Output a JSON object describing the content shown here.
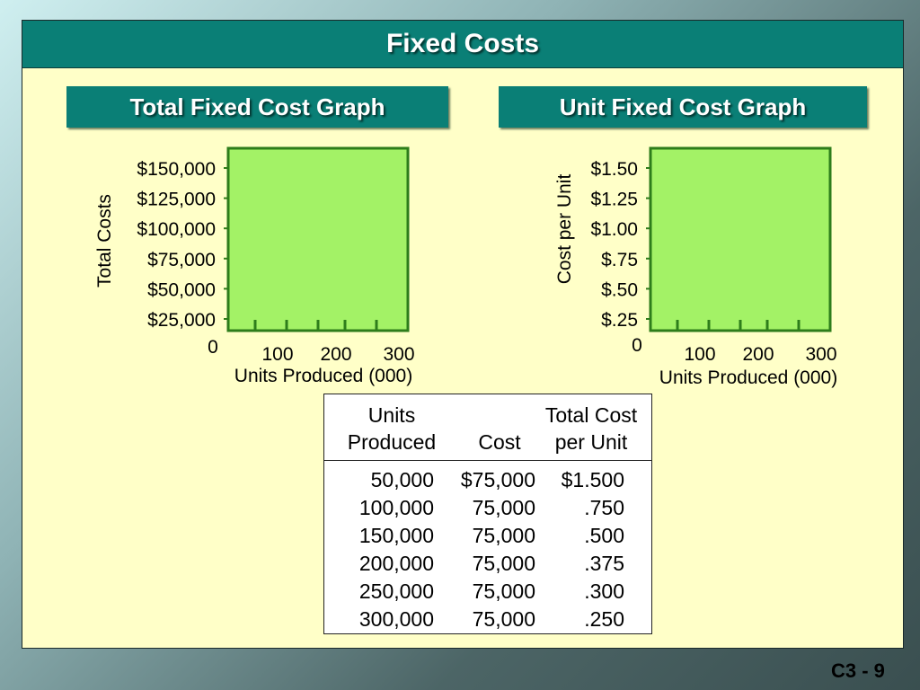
{
  "slide": {
    "title": "Fixed Costs",
    "number": "C3 - 9"
  },
  "chart_data": [
    {
      "type": "bar",
      "title": "Total Fixed Cost Graph",
      "ylabel": "Total Costs",
      "xlabel": "Units Produced (000)",
      "origin_label": "0",
      "y_tick_labels": [
        "$25,000",
        "$50,000",
        "$75,000",
        "$100,000",
        "$125,000",
        "$150,000"
      ],
      "x_tick_labels": [
        "100",
        "200",
        "300"
      ],
      "ylim": [
        0,
        150000
      ],
      "xlim": [
        0,
        300
      ],
      "plot_color": "#a3f266",
      "border_color": "#2e7d1b"
    },
    {
      "type": "bar",
      "title": "Unit Fixed Cost Graph",
      "ylabel": "Cost per Unit",
      "xlabel": "Units Produced (000)",
      "origin_label": "0",
      "y_tick_labels": [
        "$.25",
        "$.50",
        "$.75",
        "$1.00",
        "$1.25",
        "$1.50"
      ],
      "x_tick_labels": [
        "100",
        "200",
        "300"
      ],
      "ylim": [
        0,
        1.5
      ],
      "xlim": [
        0,
        300
      ],
      "plot_color": "#a3f266",
      "border_color": "#2e7d1b"
    }
  ],
  "table": {
    "headers": {
      "units": [
        "Units",
        "Produced"
      ],
      "cost": [
        "",
        "Cost"
      ],
      "per_unit": [
        "Total Cost",
        "per Unit"
      ]
    },
    "rows": [
      {
        "units": "50,000",
        "cost": "$75,000",
        "per_unit": "$1.500"
      },
      {
        "units": "100,000",
        "cost": "75,000",
        "per_unit": ".750"
      },
      {
        "units": "150,000",
        "cost": "75,000",
        "per_unit": ".500"
      },
      {
        "units": "200,000",
        "cost": "75,000",
        "per_unit": ".375"
      },
      {
        "units": "250,000",
        "cost": "75,000",
        "per_unit": ".300"
      },
      {
        "units": "300,000",
        "cost": "75,000",
        "per_unit": ".250"
      }
    ]
  }
}
